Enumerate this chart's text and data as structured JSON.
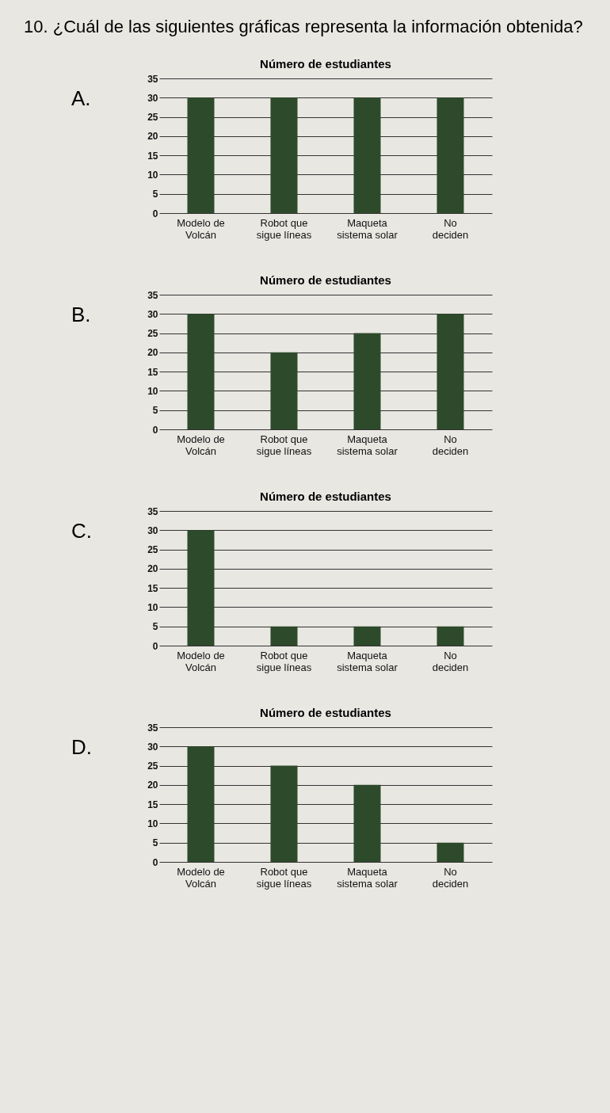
{
  "chart_data": [
    {
      "type": "bar",
      "title": "Número de estudiantes",
      "annotations": [
        "10. ¿Cuál de las siguientes gráficas representa la información obtenida?",
        "A."
      ],
      "categories": [
        "Modelo de Volcán",
        "Robot que sigue líneas",
        "Maqueta sistema solar",
        "No deciden"
      ],
      "values": [
        30,
        30,
        30,
        30
      ],
      "color": "#2d4a2b",
      "ylim": [
        0,
        35
      ],
      "yticks": [
        0,
        5,
        10,
        15,
        20,
        25,
        30,
        35
      ],
      "grid": "y"
    },
    {
      "type": "bar",
      "title": "Número de estudiantes",
      "annotations": [
        "B."
      ],
      "categories": [
        "Modelo de Volcán",
        "Robot que sigue líneas",
        "Maqueta sistema solar",
        "No deciden"
      ],
      "values": [
        30,
        20,
        25,
        30
      ],
      "color": "#2d4a2b",
      "ylim": [
        0,
        35
      ],
      "yticks": [
        0,
        5,
        10,
        15,
        20,
        25,
        30,
        35
      ],
      "grid": "y"
    },
    {
      "type": "bar",
      "title": "Número de estudiantes",
      "annotations": [
        "C."
      ],
      "categories": [
        "Modelo de Volcán",
        "Robot que sigue líneas",
        "Maqueta sistema solar",
        "No deciden"
      ],
      "values": [
        30,
        5,
        5,
        5
      ],
      "color": "#2d4a2b",
      "ylim": [
        0,
        35
      ],
      "yticks": [
        0,
        5,
        10,
        15,
        20,
        25,
        30,
        35
      ],
      "grid": "y"
    },
    {
      "type": "bar",
      "title": "Número de estudiantes",
      "annotations": [
        "D."
      ],
      "categories": [
        "Modelo de Volcán",
        "Robot que sigue líneas",
        "Maqueta sistema solar",
        "No deciden"
      ],
      "values": [
        30,
        25,
        20,
        5
      ],
      "color": "#2d4a2b",
      "ylim": [
        0,
        35
      ],
      "yticks": [
        0,
        5,
        10,
        15,
        20,
        25,
        30,
        35
      ],
      "grid": "y"
    }
  ]
}
